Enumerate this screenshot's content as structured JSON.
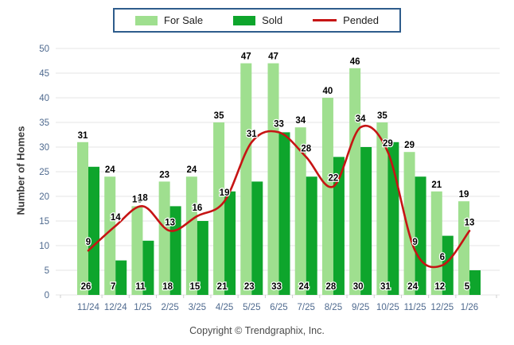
{
  "legend": {
    "for_sale": "For Sale",
    "sold": "Sold",
    "pended": "Pended"
  },
  "copyright": "Copyright © Trendgraphix, Inc.",
  "colors": {
    "for_sale": "#9fdf8f",
    "sold": "#0ea52c",
    "pended": "#c61414",
    "axis_text": "#4f6a8f",
    "gridline": "#e6e6e6",
    "tick": "#cccccc",
    "bar_label": "#000000",
    "legend_border": "#2e5c8c"
  },
  "chart_data": {
    "type": "bar",
    "title": "",
    "xlabel": "",
    "ylabel": "Number of Homes",
    "ylim": [
      0,
      50
    ],
    "ytick_step": 5,
    "grid": true,
    "legend_position": "top",
    "categories": [
      "11/24",
      "12/24",
      "1/25",
      "2/25",
      "3/25",
      "4/25",
      "5/25",
      "6/25",
      "7/25",
      "8/25",
      "9/25",
      "10/25",
      "11/25",
      "12/25",
      "1/26"
    ],
    "series": [
      {
        "name": "For Sale",
        "type": "bar",
        "color": "#9fdf8f",
        "values": [
          31,
          24,
          18,
          23,
          24,
          35,
          47,
          47,
          34,
          40,
          46,
          35,
          29,
          21,
          19
        ]
      },
      {
        "name": "Sold",
        "type": "bar",
        "color": "#0ea52c",
        "values": [
          26,
          7,
          11,
          18,
          15,
          21,
          23,
          33,
          24,
          28,
          30,
          31,
          24,
          12,
          5
        ]
      },
      {
        "name": "Pended",
        "type": "line",
        "color": "#c61414",
        "values": [
          9,
          14,
          18,
          13,
          16,
          19,
          31,
          33,
          28,
          22,
          34,
          29,
          9,
          6,
          13
        ]
      }
    ]
  }
}
